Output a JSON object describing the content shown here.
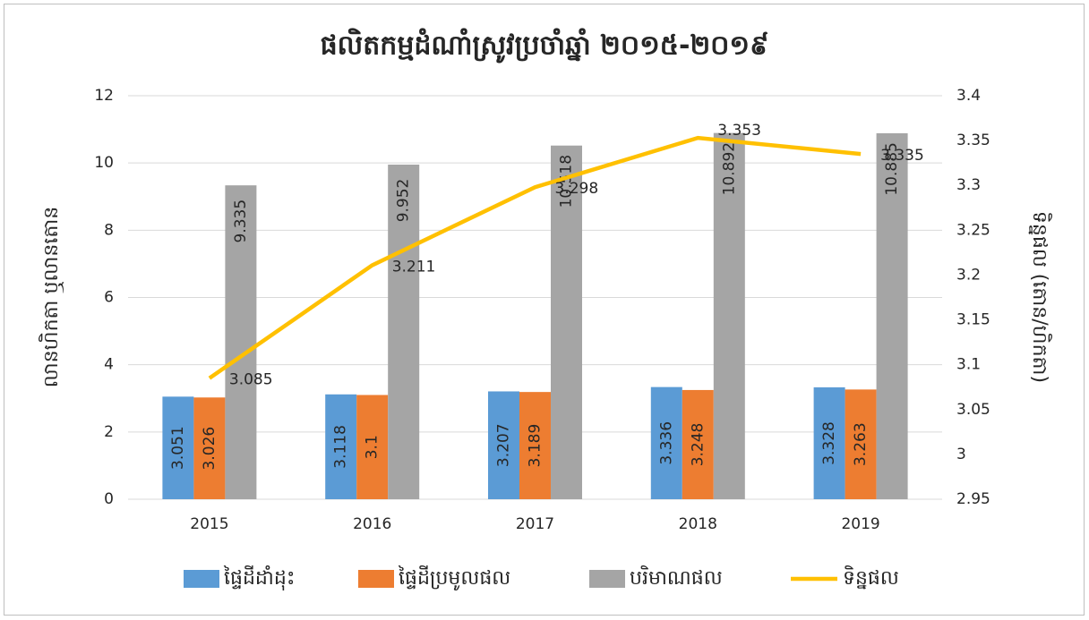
{
  "chart_data": {
    "type": "bar",
    "title": "ផលិតកម្មដំណាំស្រូវប្រចាំឆ្នាំ ២០១៥-២០១៩",
    "y_label": "លានហិកតា ឬលានតោន",
    "y2_label": "ទិន្នផល (តោន/ហិកតា)",
    "categories": [
      "2015",
      "2016",
      "2017",
      "2018",
      "2019"
    ],
    "series": [
      {
        "name": "ផ្ទៃដីដាំដុះ",
        "color": "#5b9bd5",
        "values": [
          3.051,
          3.118,
          3.207,
          3.336,
          3.328
        ]
      },
      {
        "name": "ផ្ទៃដីប្រមូលផល",
        "color": "#ed7d31",
        "values": [
          3.026,
          3.1,
          3.189,
          3.248,
          3.263
        ]
      },
      {
        "name": "បរិមាណផល",
        "color": "#a5a5a5",
        "values": [
          9.335,
          9.952,
          10.518,
          10.892,
          10.885
        ]
      },
      {
        "name": "ទិន្នផល",
        "color": "#ffc000",
        "type": "line",
        "axis": "y2",
        "values": [
          3.085,
          3.211,
          3.298,
          3.353,
          3.335
        ]
      }
    ],
    "ylim": [
      0,
      12
    ],
    "yticks": [
      0,
      2,
      4,
      6,
      8,
      10,
      12
    ],
    "y2lim": [
      2.95,
      3.4
    ],
    "y2ticks": [
      2.95,
      3,
      3.05,
      3.1,
      3.15,
      3.2,
      3.25,
      3.3,
      3.35,
      3.4
    ],
    "grid": true,
    "legend": "bottom"
  }
}
